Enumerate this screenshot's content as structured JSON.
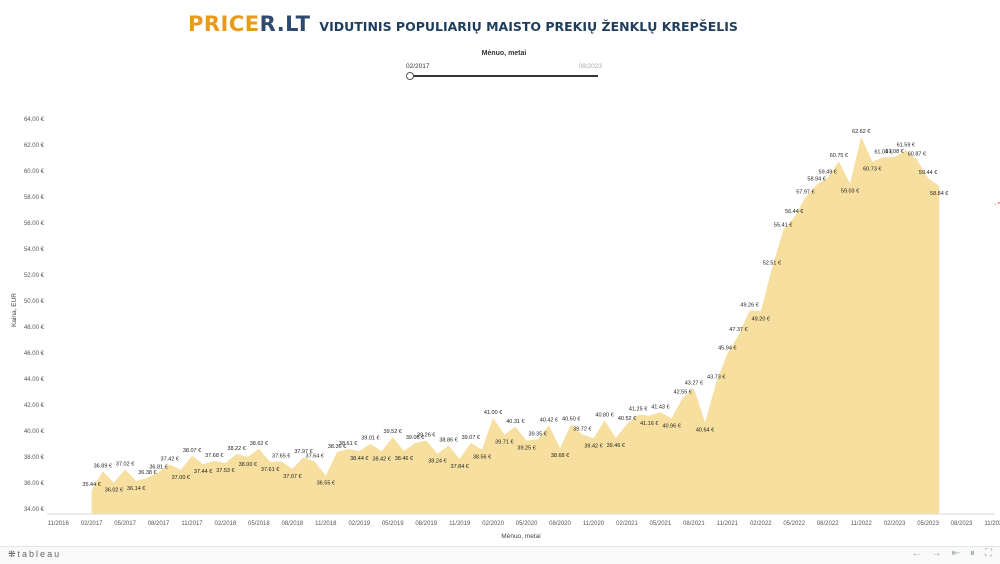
{
  "header": {
    "logo_part1": "PRICE",
    "logo_part2": "R.LT",
    "title": "VIDUTINIS POPULIARIŲ MAISTO PREKIŲ ŽENKLŲ KREPŠELIS"
  },
  "filter": {
    "title": "Mėnuo, metai",
    "from": "02/2017",
    "to": "08/2023",
    "selected_fraction": 0
  },
  "footer": {
    "logo": "tableau",
    "nav_icons": [
      "undo-icon",
      "redo-icon",
      "revert-icon",
      "pause-icon",
      "fullscreen-icon"
    ]
  },
  "colors": {
    "area": "#f6df9f",
    "trend": "#e05a5a",
    "axis_text": "#555555"
  },
  "chart_data": {
    "type": "area",
    "xlabel": "Mėnuo, metai",
    "ylabel": "Kaina, EUR",
    "ylim": [
      33.6,
      65
    ],
    "xlim": [
      "10/2016",
      "11/2023"
    ],
    "y_ticks": [
      "34.00 €",
      "36.00 €",
      "38.00 €",
      "40.00 €",
      "42.00 €",
      "44.00 €",
      "46.00 €",
      "48.00 €",
      "50.00 €",
      "52.00 €",
      "54.00 €",
      "56.00 €",
      "58.00 €",
      "60.00 €",
      "62.00 €",
      "64.00 €"
    ],
    "x_ticks": [
      "11/2016",
      "02/2017",
      "05/2017",
      "08/2017",
      "11/2017",
      "02/2018",
      "05/2018",
      "08/2018",
      "11/2018",
      "02/2019",
      "05/2019",
      "08/2019",
      "11/2019",
      "02/2020",
      "05/2020",
      "08/2020",
      "11/2020",
      "02/2021",
      "05/2021",
      "08/2021",
      "11/2021",
      "02/2022",
      "05/2022",
      "08/2022",
      "11/2022",
      "02/2023",
      "05/2023",
      "08/2023",
      "11/2023"
    ],
    "grid": false,
    "trend_line": {
      "type": "linear",
      "style": "dashed",
      "color": "#e05a5a"
    },
    "points": [
      {
        "x": "02/2017",
        "y": 35.44,
        "label": "35.44 €"
      },
      {
        "x": "03/2017",
        "y": 36.89,
        "label": "36.89 €"
      },
      {
        "x": "04/2017",
        "y": 36.02,
        "label": "36.02 €"
      },
      {
        "x": "05/2017",
        "y": 37.02,
        "label": "37.02 €"
      },
      {
        "x": "06/2017",
        "y": 36.14,
        "label": "36.14 €"
      },
      {
        "x": "07/2017",
        "y": 36.38,
        "label": "36.38 €"
      },
      {
        "x": "08/2017",
        "y": 36.81,
        "label": "36.81 €"
      },
      {
        "x": "09/2017",
        "y": 37.42,
        "label": "37.42 €"
      },
      {
        "x": "10/2017",
        "y": 37.0,
        "label": "37.00 €"
      },
      {
        "x": "11/2017",
        "y": 38.07,
        "label": "38.07 €"
      },
      {
        "x": "12/2017",
        "y": 37.44,
        "label": "37.44 €"
      },
      {
        "x": "01/2018",
        "y": 37.68,
        "label": "37.68 €"
      },
      {
        "x": "02/2018",
        "y": 37.53,
        "label": "37.53 €"
      },
      {
        "x": "03/2018",
        "y": 38.22,
        "label": "38.22 €"
      },
      {
        "x": "04/2018",
        "y": 38.0,
        "label": "38.00 €"
      },
      {
        "x": "05/2018",
        "y": 38.62,
        "label": "38.62 €"
      },
      {
        "x": "06/2018",
        "y": 37.61,
        "label": "37.61 €"
      },
      {
        "x": "07/2018",
        "y": 37.65,
        "label": "37.65 €"
      },
      {
        "x": "08/2018",
        "y": 37.07,
        "label": "37.07 €"
      },
      {
        "x": "09/2018",
        "y": 37.97,
        "label": "37.97 €"
      },
      {
        "x": "10/2018",
        "y": 37.64,
        "label": "37.64 €"
      },
      {
        "x": "11/2018",
        "y": 36.55,
        "label": "36.55 €"
      },
      {
        "x": "12/2018",
        "y": 38.36,
        "label": "38.36 €"
      },
      {
        "x": "01/2019",
        "y": 38.61,
        "label": "38.61 €"
      },
      {
        "x": "02/2019",
        "y": 38.44,
        "label": "38.44 €"
      },
      {
        "x": "03/2019",
        "y": 39.01,
        "label": "39.01 €"
      },
      {
        "x": "04/2019",
        "y": 38.42,
        "label": "38.42 €"
      },
      {
        "x": "05/2019",
        "y": 39.52,
        "label": "39.52 €"
      },
      {
        "x": "06/2019",
        "y": 38.46,
        "label": "38.46 €"
      },
      {
        "x": "07/2019",
        "y": 39.06,
        "label": "39.06 €"
      },
      {
        "x": "08/2019",
        "y": 39.26,
        "label": "39.26 €"
      },
      {
        "x": "09/2019",
        "y": 38.24,
        "label": "38.24 €"
      },
      {
        "x": "10/2019",
        "y": 38.86,
        "label": "38.86 €"
      },
      {
        "x": "11/2019",
        "y": 37.84,
        "label": "37.84 €"
      },
      {
        "x": "12/2019",
        "y": 39.07,
        "label": "39.07 €"
      },
      {
        "x": "01/2020",
        "y": 38.56,
        "label": "38.56 €"
      },
      {
        "x": "02/2020",
        "y": 41.0,
        "label": "41.00 €"
      },
      {
        "x": "03/2020",
        "y": 39.71,
        "label": "39.71 €"
      },
      {
        "x": "04/2020",
        "y": 40.31,
        "label": "40.31 €"
      },
      {
        "x": "05/2020",
        "y": 39.25,
        "label": "39.25 €"
      },
      {
        "x": "06/2020",
        "y": 39.35,
        "label": "39.35 €"
      },
      {
        "x": "07/2020",
        "y": 40.42,
        "label": "40.42 €"
      },
      {
        "x": "08/2020",
        "y": 38.68,
        "label": "38.68 €"
      },
      {
        "x": "09/2020",
        "y": 40.5,
        "label": "40.50 €"
      },
      {
        "x": "10/2020",
        "y": 39.72,
        "label": "39.72 €"
      },
      {
        "x": "11/2020",
        "y": 39.42,
        "label": "39.42 €"
      },
      {
        "x": "12/2020",
        "y": 40.8,
        "label": "40.80 €"
      },
      {
        "x": "01/2021",
        "y": 39.46,
        "label": "39.46 €"
      },
      {
        "x": "02/2021",
        "y": 40.52,
        "label": "40.52 €"
      },
      {
        "x": "03/2021",
        "y": 41.25,
        "label": "41.25 €"
      },
      {
        "x": "04/2021",
        "y": 41.16,
        "label": "41.16 €"
      },
      {
        "x": "05/2021",
        "y": 41.43,
        "label": "41.43 €"
      },
      {
        "x": "06/2021",
        "y": 40.96,
        "label": "40.96 €"
      },
      {
        "x": "07/2021",
        "y": 42.55,
        "label": "42.55 €"
      },
      {
        "x": "08/2021",
        "y": 43.27,
        "label": "43.27 €"
      },
      {
        "x": "09/2021",
        "y": 40.64,
        "label": "40.64 €"
      },
      {
        "x": "10/2021",
        "y": 43.73,
        "label": "43.73 €"
      },
      {
        "x": "11/2021",
        "y": 45.94,
        "label": "45.94 €"
      },
      {
        "x": "12/2021",
        "y": 47.37,
        "label": "47.37 €"
      },
      {
        "x": "01/2022",
        "y": 49.26,
        "label": "49.26 €"
      },
      {
        "x": "02/2022",
        "y": 49.2,
        "label": "49.20 €"
      },
      {
        "x": "03/2022",
        "y": 52.51,
        "label": "52.51 €"
      },
      {
        "x": "04/2022",
        "y": 55.41,
        "label": "55.41 €"
      },
      {
        "x": "05/2022",
        "y": 56.44,
        "label": "56.44 €"
      },
      {
        "x": "06/2022",
        "y": 57.97,
        "label": "57.97 €"
      },
      {
        "x": "07/2022",
        "y": 58.94,
        "label": "58.94 €"
      },
      {
        "x": "08/2022",
        "y": 59.49,
        "label": "59.49 €"
      },
      {
        "x": "09/2022",
        "y": 60.75,
        "label": "60.75 €"
      },
      {
        "x": "10/2022",
        "y": 59.03,
        "label": "59.03 €"
      },
      {
        "x": "11/2022",
        "y": 62.62,
        "label": "62.62 €"
      },
      {
        "x": "12/2022",
        "y": 60.73,
        "label": "60.73 €"
      },
      {
        "x": "01/2023",
        "y": 61.04,
        "label": "61.04 €"
      },
      {
        "x": "02/2023",
        "y": 61.08,
        "label": "61.08 €"
      },
      {
        "x": "03/2023",
        "y": 61.59,
        "label": "61.59 €"
      },
      {
        "x": "04/2023",
        "y": 60.87,
        "label": "60.87 €"
      },
      {
        "x": "05/2023",
        "y": 59.44,
        "label": "59.44 €"
      },
      {
        "x": "06/2023",
        "y": 58.84,
        "label": "58.84 €"
      }
    ]
  }
}
